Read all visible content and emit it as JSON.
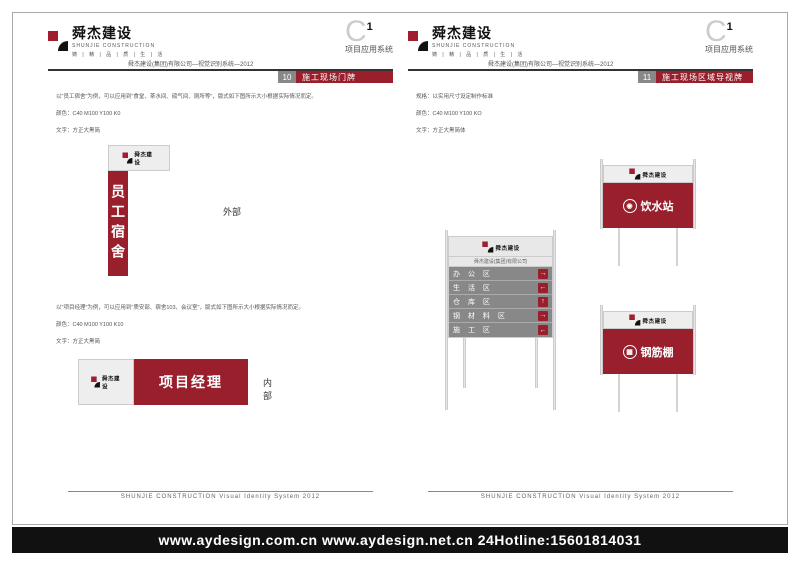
{
  "brand": {
    "name_cn": "舜杰建设",
    "name_en": "SHUNJIE CONSTRUCTION",
    "tagline": "铸 | 精 | 品 | 质 | 生 | 活",
    "company_line": "舜杰建设(集团)有限公司—视觉识别系统—2012"
  },
  "section": {
    "code_letter": "C",
    "code_num": "1",
    "code_sub": "项目应用系统"
  },
  "left": {
    "title_num": "10",
    "title": "施工现场门牌",
    "desc1": "以\"员工宿舍\"为例，可以应用到\"食堂、茶水间、磅气间、厕所等\"，版式如下图所示大小根据实际情况而定。",
    "colors1": "颜色：C40  M100    Y100   K0",
    "font1": "文字：方正大黑简",
    "sign1": "员工宿舍",
    "side1": "外部",
    "desc2": "以\"项目经理\"为例，可以应用到\"质安部、宿舍103、会议室\"，版式如下图所示大小根据实际情况而定。",
    "colors2": "颜色：C40  M100   Y100   K10",
    "font2": "文字：方正大黑简",
    "sign2": "项目经理",
    "side2": "内部"
  },
  "right": {
    "title_num": "11",
    "title": "施工现场区域导视牌",
    "desc": "规格：以实用尺寸设定制作标准",
    "colors": "颜色：C40 M100 Y100 KO",
    "font": "文字：方正大黑简体",
    "dir_sub": "舜杰建设(集团)有限公司",
    "rows": [
      {
        "label": "办 公 区",
        "arrow": "→"
      },
      {
        "label": "生 活 区",
        "arrow": "←"
      },
      {
        "label": "仓 库 区",
        "arrow": "↑"
      },
      {
        "label": "钢 材 料 区",
        "arrow": "→"
      },
      {
        "label": "施 工 区",
        "arrow": "←"
      }
    ],
    "sign_a": "饮水站",
    "sign_b": "钢筋棚"
  },
  "footer": "SHUNJIE CONSTRUCTION   Visual Identity System   2012",
  "bottom": "www.aydesign.com.cn www.aydesign.net.cn 24Hotline:15601814031"
}
